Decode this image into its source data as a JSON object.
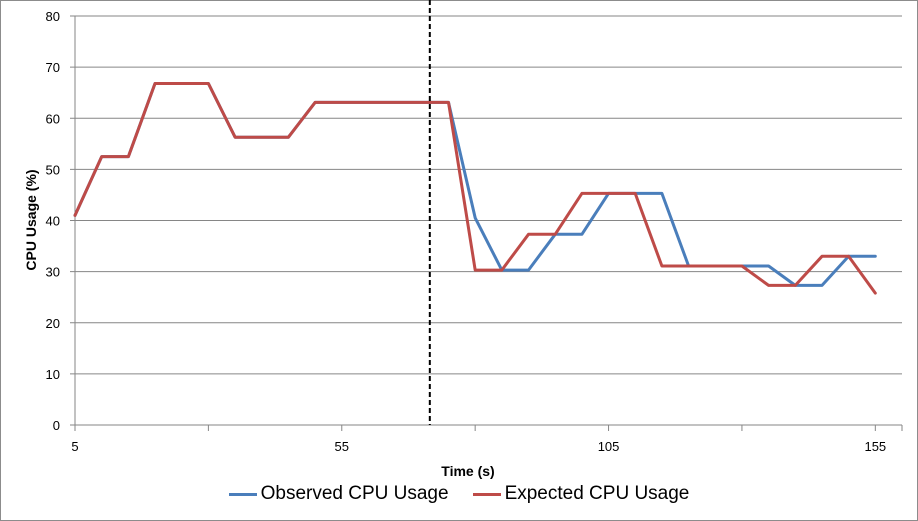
{
  "chart_data": {
    "type": "line",
    "xlabel": "Time (s)",
    "ylabel": "CPU Usage (%)",
    "xlim": [
      5,
      160
    ],
    "ylim": [
      0,
      80
    ],
    "x_ticks": [
      5,
      55,
      105,
      155
    ],
    "x_minor_ticks": [
      30,
      80,
      130
    ],
    "y_ticks": [
      0,
      10,
      20,
      30,
      40,
      50,
      60,
      70,
      80
    ],
    "grid": "horizontal",
    "marker_line_x": 71.5,
    "legend_position": "bottom",
    "series": [
      {
        "name": "Observed CPU Usage",
        "color": "#4a7ebb",
        "x": [
          5,
          10,
          15,
          20,
          25,
          30,
          35,
          40,
          45,
          50,
          55,
          60,
          65,
          70,
          75,
          80,
          85,
          90,
          95,
          100,
          105,
          110,
          115,
          120,
          125,
          130,
          135,
          140,
          145,
          150,
          155
        ],
        "y": [
          41,
          52.5,
          52.5,
          66.8,
          66.8,
          66.8,
          56.3,
          56.3,
          56.3,
          63.1,
          63.1,
          63.1,
          63.1,
          63.1,
          63.1,
          40.5,
          30.3,
          30.3,
          37.3,
          37.3,
          45.3,
          45.3,
          45.3,
          31.1,
          31.1,
          31.1,
          31.1,
          27.3,
          27.3,
          33,
          33
        ]
      },
      {
        "name": "Expected CPU Usage",
        "color": "#be4b48",
        "x": [
          5,
          10,
          15,
          20,
          25,
          30,
          35,
          40,
          45,
          50,
          55,
          60,
          65,
          70,
          75,
          80,
          85,
          90,
          95,
          100,
          105,
          110,
          115,
          120,
          125,
          130,
          135,
          140,
          145,
          150,
          155
        ],
        "y": [
          41,
          52.5,
          52.5,
          66.8,
          66.8,
          66.8,
          56.3,
          56.3,
          56.3,
          63.1,
          63.1,
          63.1,
          63.1,
          63.1,
          63.1,
          30.3,
          30.3,
          37.3,
          37.3,
          45.3,
          45.3,
          45.3,
          31.1,
          31.1,
          31.1,
          31.1,
          27.3,
          27.3,
          33,
          33,
          25.8
        ]
      }
    ]
  }
}
